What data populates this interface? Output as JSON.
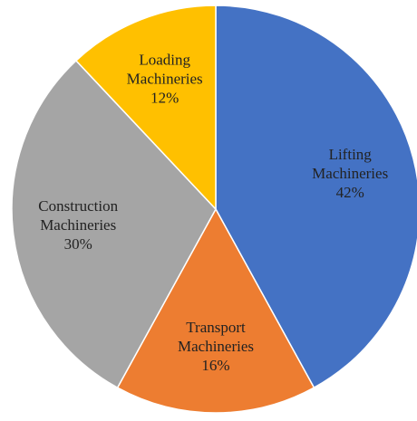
{
  "chart_data": {
    "type": "pie",
    "categories": [
      "Lifting Machineries",
      "Transport Machineries",
      "Construction Machineries",
      "Loading Machineries"
    ],
    "values": [
      42,
      16,
      30,
      12
    ],
    "value_labels": [
      "42%",
      "16%",
      "30%",
      "12%"
    ],
    "colors": [
      "#4472c4",
      "#ed7d31",
      "#a5a5a5",
      "#ffc000"
    ]
  }
}
